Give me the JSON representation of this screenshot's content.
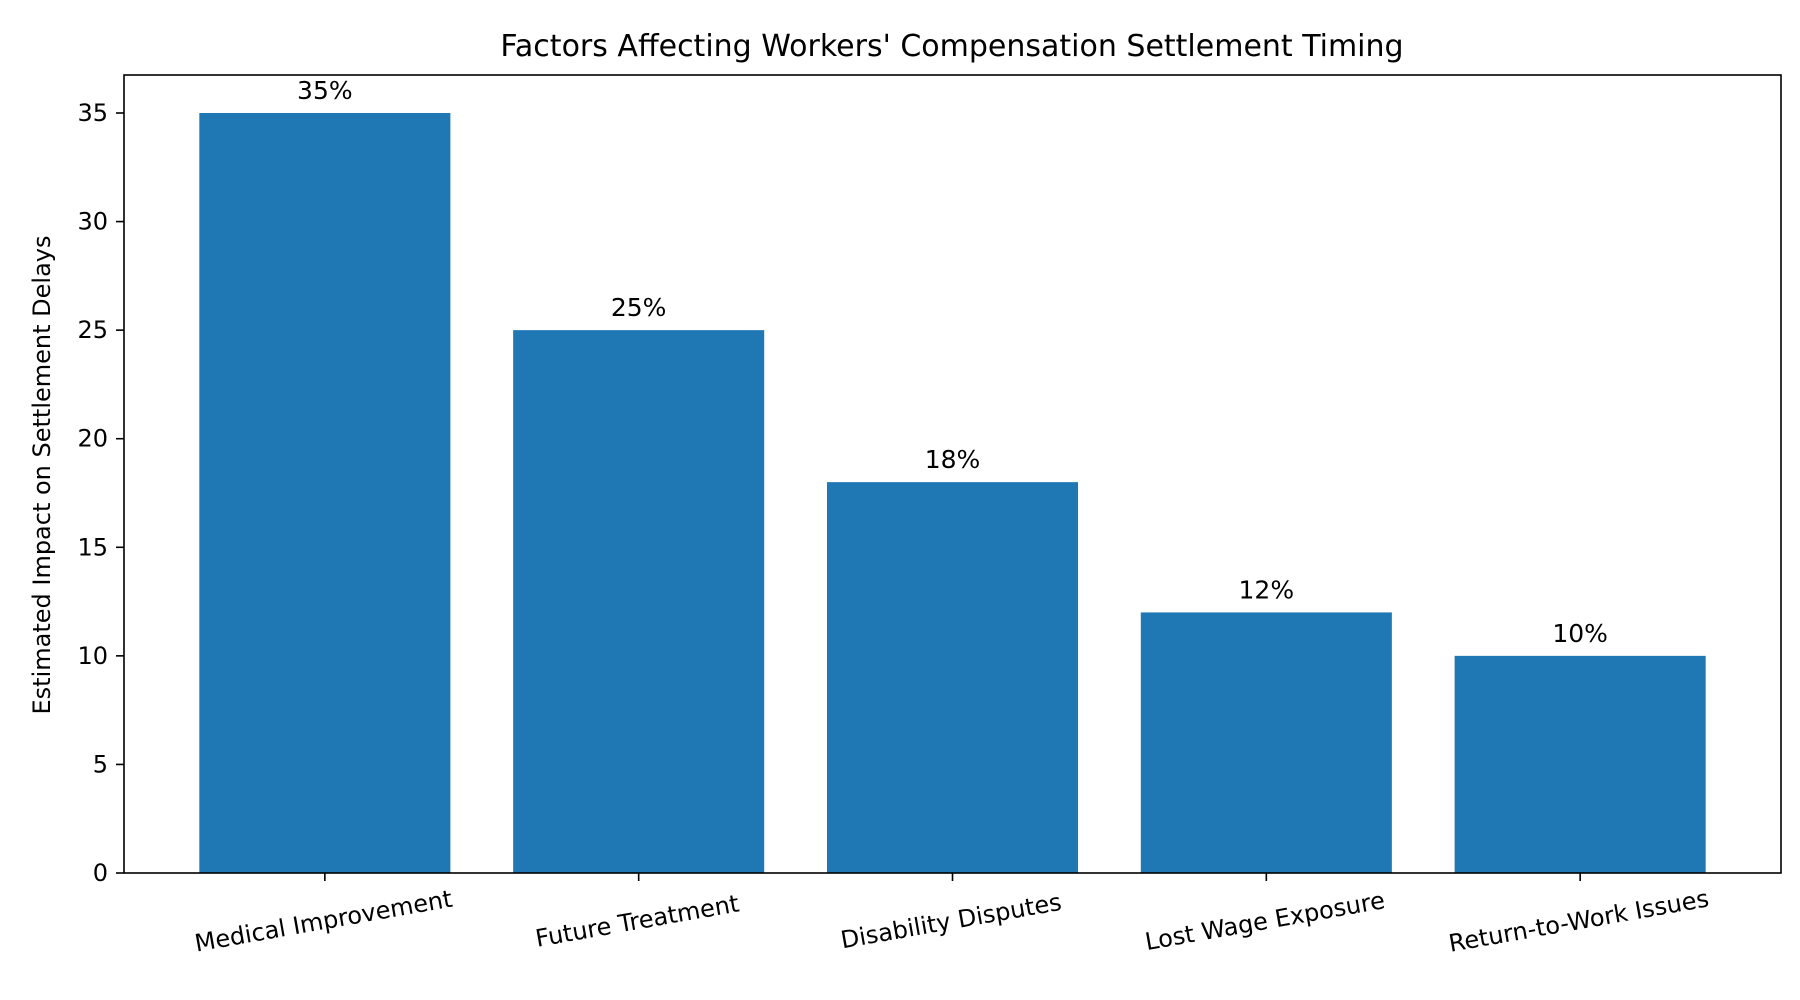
{
  "chart_data": {
    "type": "bar",
    "title": "Factors Affecting Workers' Compensation Settlement Timing",
    "xlabel": "",
    "ylabel": "Estimated Impact on Settlement Delays",
    "categories": [
      "Medical Improvement",
      "Future Treatment",
      "Disability Disputes",
      "Lost Wage Exposure",
      "Return-to-Work Issues"
    ],
    "values": [
      35,
      25,
      18,
      12,
      10
    ],
    "data_labels": [
      "35%",
      "25%",
      "18%",
      "12%",
      "10%"
    ],
    "ylim": [
      0,
      36.75
    ],
    "yticks": [
      0,
      5,
      10,
      15,
      20,
      25,
      30,
      35
    ],
    "bar_color": "#1f77b4",
    "grid": false,
    "legend": "none"
  }
}
